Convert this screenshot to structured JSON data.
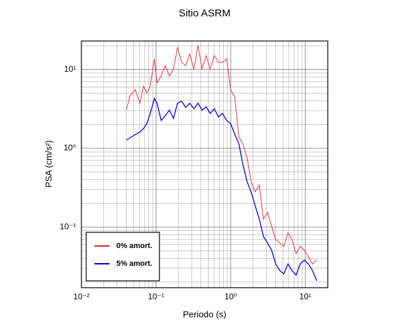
{
  "chart_data": {
    "type": "line",
    "title": "Sitio ASRM",
    "x_label": "Periodo (s)",
    "y_label": "PSA (cm/s²)",
    "x_scale": "log",
    "y_scale": "log",
    "grid": true,
    "minor_grid": true,
    "legend_position": "lower left",
    "xlim": [
      0.01,
      20
    ],
    "ylim": [
      0.017,
      23
    ],
    "xticks": [
      {
        "value": 0.01,
        "label": "10⁻²"
      },
      {
        "value": 0.1,
        "label": "10⁻¹"
      },
      {
        "value": 1,
        "label": "10⁰"
      },
      {
        "value": 10,
        "label": "10¹"
      }
    ],
    "yticks": [
      {
        "value": 0.1,
        "label": "10⁻¹"
      },
      {
        "value": 1,
        "label": "10⁰"
      },
      {
        "value": 10,
        "label": "10¹"
      }
    ],
    "x": [
      0.04,
      0.0445,
      0.0526,
      0.061,
      0.0678,
      0.0753,
      0.0836,
      0.0949,
      0.103,
      0.117,
      0.133,
      0.151,
      0.171,
      0.194,
      0.22,
      0.249,
      0.283,
      0.321,
      0.365,
      0.413,
      0.469,
      0.532,
      0.604,
      0.685,
      0.777,
      0.882,
      1.0,
      1.13,
      1.29,
      1.46,
      1.66,
      1.88,
      2.13,
      2.42,
      2.74,
      3.11,
      3.53,
      4.01,
      4.55,
      5.16,
      5.85,
      6.64,
      7.53,
      8.54,
      9.69,
      11.0,
      12.5,
      14.2
    ],
    "series": [
      {
        "name": "0% amort.",
        "color": "#e8202a",
        "values": [
          3.05,
          4.55,
          5.55,
          3.73,
          6.14,
          5.03,
          6.14,
          13.6,
          6.78,
          8.27,
          11.2,
          8.27,
          10.1,
          19.1,
          12.3,
          11.2,
          15.7,
          10.1,
          20.3,
          10.1,
          15.0,
          10.1,
          15.0,
          12.3,
          12.3,
          13.6,
          5.55,
          4.55,
          1.38,
          1.13,
          0.756,
          0.377,
          0.279,
          0.341,
          0.126,
          0.153,
          0.103,
          0.069,
          0.063,
          0.057,
          0.084,
          0.069,
          0.046,
          0.057,
          0.051,
          0.042,
          0.034,
          0.038
        ]
      },
      {
        "name": "5% amort.",
        "color": "#0000dd",
        "values": [
          1.27,
          1.35,
          1.49,
          1.61,
          1.78,
          2.05,
          2.77,
          4.29,
          3.73,
          2.26,
          2.6,
          3.05,
          2.4,
          3.73,
          3.96,
          3.31,
          3.73,
          3.18,
          3.73,
          3.05,
          3.37,
          2.77,
          3.18,
          2.5,
          2.77,
          2.26,
          2.05,
          1.52,
          1.13,
          0.62,
          0.377,
          0.279,
          0.187,
          0.126,
          0.076,
          0.063,
          0.051,
          0.034,
          0.028,
          0.0255,
          0.034,
          0.028,
          0.0245,
          0.034,
          0.038,
          0.034,
          0.028,
          0.0209
        ]
      }
    ]
  }
}
